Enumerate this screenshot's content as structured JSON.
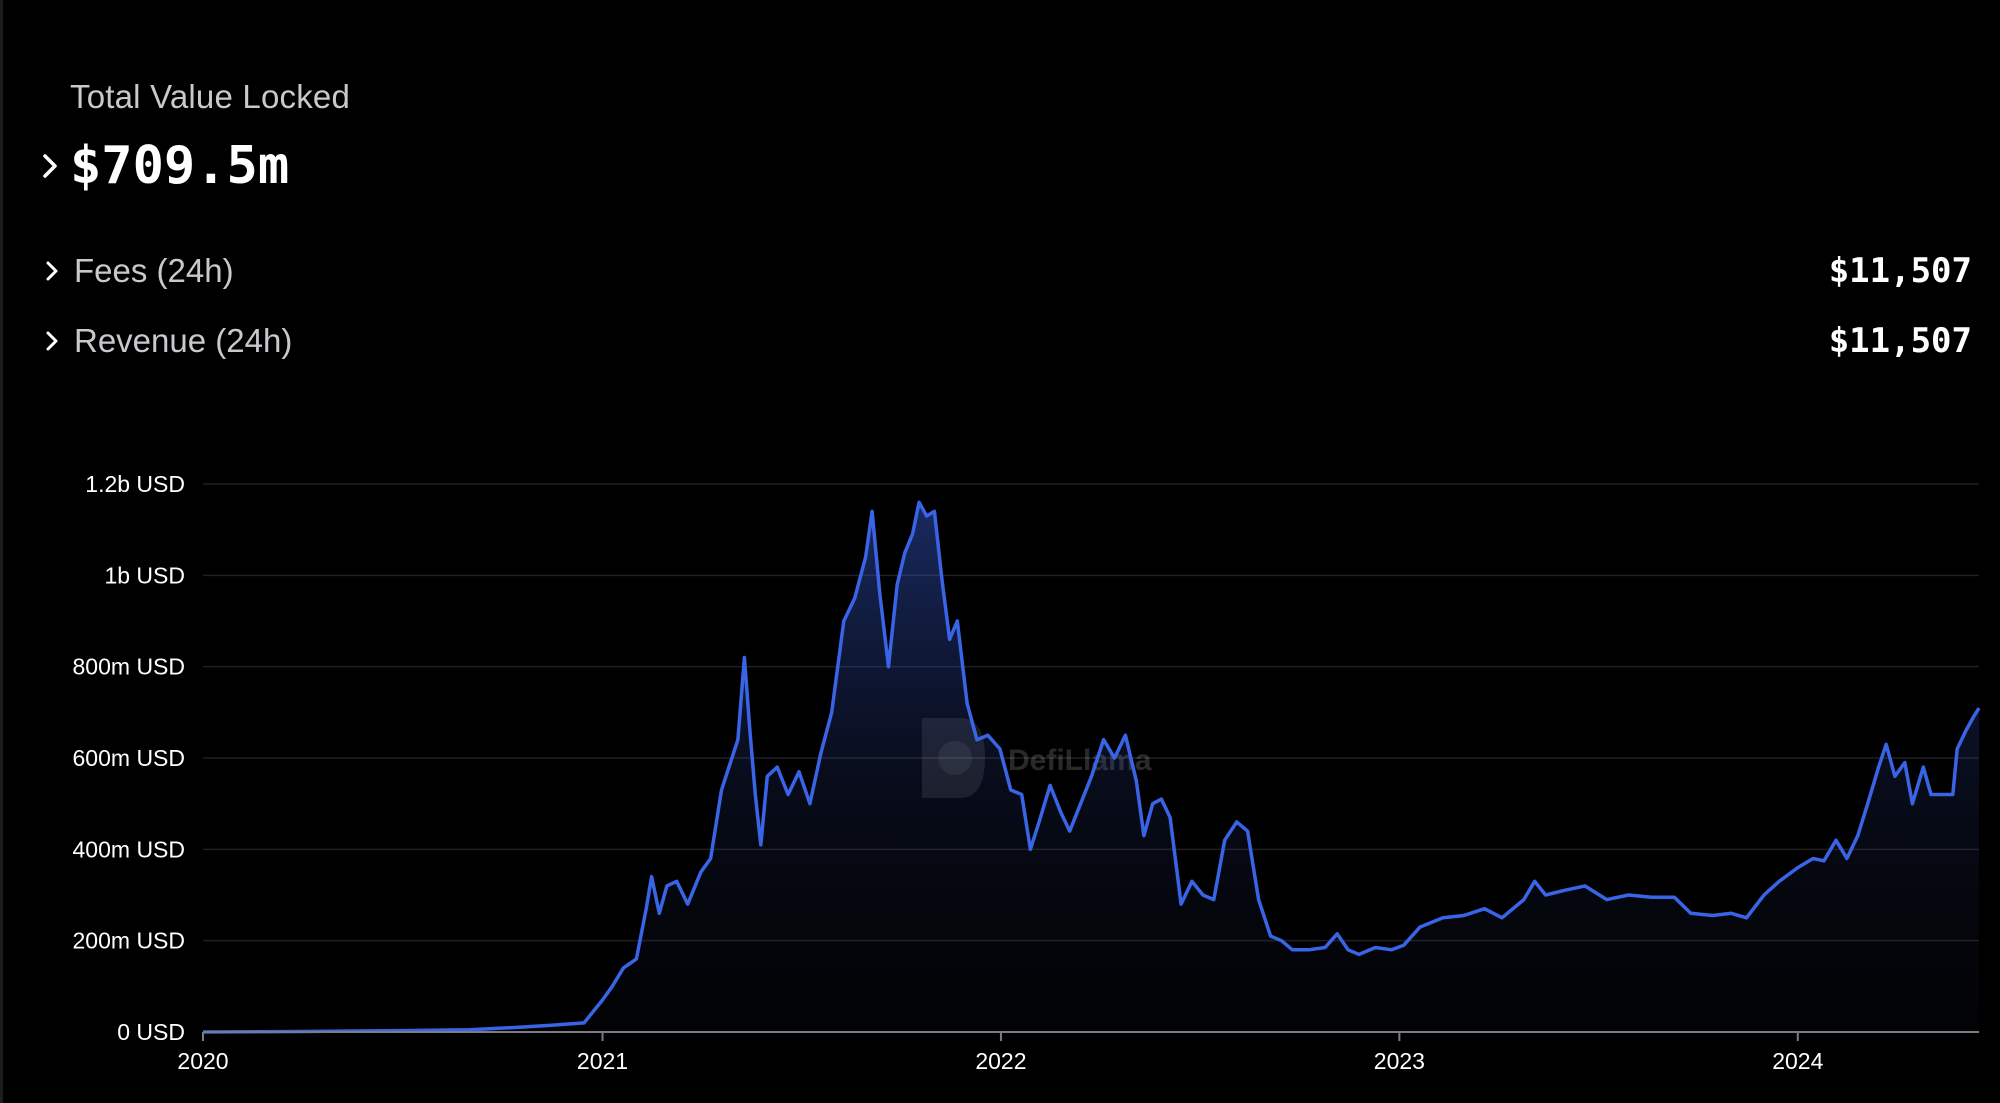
{
  "header": {
    "tvl_label": "Total Value Locked",
    "tvl_value": "$709.5m"
  },
  "metrics": [
    {
      "label": "Fees (24h)",
      "value": "$11,507"
    },
    {
      "label": "Revenue (24h)",
      "value": "$11,507"
    }
  ],
  "watermark": "DefiLlama",
  "colors": {
    "background": "#000000",
    "line": "#3a64e6",
    "grid": "#1f2024",
    "text_muted": "#c8c9cd"
  },
  "chart_data": {
    "type": "area",
    "title": "",
    "xlabel": "",
    "ylabel": "",
    "ylim": [
      0,
      1200000000
    ],
    "yticks": [
      0,
      200000000,
      400000000,
      600000000,
      800000000,
      1000000000,
      1200000000
    ],
    "ytick_labels": [
      "0 USD",
      "200m USD",
      "400m USD",
      "600m USD",
      "800m USD",
      "1b USD",
      "1.2b USD"
    ],
    "xlim": [
      "2020-01-01",
      "2024-06-15"
    ],
    "xticks": [
      "2020-01-01",
      "2021-01-01",
      "2022-01-01",
      "2023-01-01",
      "2024-01-01"
    ],
    "xtick_labels": [
      "2020",
      "2021",
      "2022",
      "2023",
      "2024"
    ],
    "grid": true,
    "series": [
      {
        "values_unit": "USD",
        "points": [
          [
            "2020-01-01",
            0
          ],
          [
            "2020-04-01",
            1000000
          ],
          [
            "2020-07-01",
            3000000
          ],
          [
            "2020-09-01",
            5000000
          ],
          [
            "2020-10-15",
            10000000
          ],
          [
            "2020-11-15",
            15000000
          ],
          [
            "2020-12-15",
            20000000
          ],
          [
            "2021-01-01",
            70000000
          ],
          [
            "2021-01-10",
            100000000
          ],
          [
            "2021-01-20",
            140000000
          ],
          [
            "2021-02-01",
            160000000
          ],
          [
            "2021-02-10",
            270000000
          ],
          [
            "2021-02-15",
            340000000
          ],
          [
            "2021-02-22",
            260000000
          ],
          [
            "2021-03-01",
            320000000
          ],
          [
            "2021-03-10",
            330000000
          ],
          [
            "2021-03-20",
            280000000
          ],
          [
            "2021-04-01",
            350000000
          ],
          [
            "2021-04-10",
            380000000
          ],
          [
            "2021-04-20",
            530000000
          ],
          [
            "2021-05-05",
            640000000
          ],
          [
            "2021-05-11",
            820000000
          ],
          [
            "2021-05-16",
            660000000
          ],
          [
            "2021-05-21",
            520000000
          ],
          [
            "2021-05-26",
            410000000
          ],
          [
            "2021-06-01",
            560000000
          ],
          [
            "2021-06-10",
            580000000
          ],
          [
            "2021-06-20",
            520000000
          ],
          [
            "2021-06-30",
            570000000
          ],
          [
            "2021-07-10",
            500000000
          ],
          [
            "2021-07-20",
            610000000
          ],
          [
            "2021-07-30",
            700000000
          ],
          [
            "2021-08-10",
            900000000
          ],
          [
            "2021-08-20",
            950000000
          ],
          [
            "2021-08-30",
            1040000000
          ],
          [
            "2021-09-05",
            1140000000
          ],
          [
            "2021-09-12",
            960000000
          ],
          [
            "2021-09-20",
            800000000
          ],
          [
            "2021-09-28",
            980000000
          ],
          [
            "2021-10-05",
            1050000000
          ],
          [
            "2021-10-12",
            1090000000
          ],
          [
            "2021-10-18",
            1160000000
          ],
          [
            "2021-10-25",
            1130000000
          ],
          [
            "2021-11-01",
            1140000000
          ],
          [
            "2021-11-08",
            990000000
          ],
          [
            "2021-11-15",
            860000000
          ],
          [
            "2021-11-22",
            900000000
          ],
          [
            "2021-12-01",
            720000000
          ],
          [
            "2021-12-10",
            640000000
          ],
          [
            "2021-12-20",
            650000000
          ],
          [
            "2021-12-31",
            620000000
          ],
          [
            "2022-01-10",
            530000000
          ],
          [
            "2022-01-20",
            520000000
          ],
          [
            "2022-01-28",
            400000000
          ],
          [
            "2022-02-05",
            460000000
          ],
          [
            "2022-02-15",
            540000000
          ],
          [
            "2022-02-25",
            480000000
          ],
          [
            "2022-03-05",
            440000000
          ],
          [
            "2022-03-15",
            500000000
          ],
          [
            "2022-03-25",
            560000000
          ],
          [
            "2022-04-05",
            640000000
          ],
          [
            "2022-04-15",
            600000000
          ],
          [
            "2022-04-25",
            650000000
          ],
          [
            "2022-05-05",
            550000000
          ],
          [
            "2022-05-12",
            430000000
          ],
          [
            "2022-05-20",
            500000000
          ],
          [
            "2022-05-28",
            510000000
          ],
          [
            "2022-06-05",
            470000000
          ],
          [
            "2022-06-15",
            280000000
          ],
          [
            "2022-06-25",
            330000000
          ],
          [
            "2022-07-05",
            300000000
          ],
          [
            "2022-07-15",
            290000000
          ],
          [
            "2022-07-25",
            420000000
          ],
          [
            "2022-08-05",
            460000000
          ],
          [
            "2022-08-15",
            440000000
          ],
          [
            "2022-08-25",
            290000000
          ],
          [
            "2022-09-05",
            210000000
          ],
          [
            "2022-09-15",
            200000000
          ],
          [
            "2022-09-25",
            180000000
          ],
          [
            "2022-10-10",
            180000000
          ],
          [
            "2022-10-25",
            185000000
          ],
          [
            "2022-11-05",
            215000000
          ],
          [
            "2022-11-15",
            180000000
          ],
          [
            "2022-11-25",
            170000000
          ],
          [
            "2022-12-10",
            185000000
          ],
          [
            "2022-12-25",
            180000000
          ],
          [
            "2023-01-05",
            190000000
          ],
          [
            "2023-01-20",
            230000000
          ],
          [
            "2023-02-10",
            250000000
          ],
          [
            "2023-03-01",
            255000000
          ],
          [
            "2023-03-20",
            270000000
          ],
          [
            "2023-04-05",
            250000000
          ],
          [
            "2023-04-25",
            290000000
          ],
          [
            "2023-05-05",
            330000000
          ],
          [
            "2023-05-15",
            300000000
          ],
          [
            "2023-06-01",
            310000000
          ],
          [
            "2023-06-20",
            320000000
          ],
          [
            "2023-07-10",
            290000000
          ],
          [
            "2023-07-30",
            300000000
          ],
          [
            "2023-08-20",
            295000000
          ],
          [
            "2023-09-10",
            295000000
          ],
          [
            "2023-09-25",
            260000000
          ],
          [
            "2023-10-15",
            255000000
          ],
          [
            "2023-11-01",
            260000000
          ],
          [
            "2023-11-15",
            250000000
          ],
          [
            "2023-12-01",
            300000000
          ],
          [
            "2023-12-15",
            330000000
          ],
          [
            "2024-01-01",
            360000000
          ],
          [
            "2024-01-15",
            380000000
          ],
          [
            "2024-01-25",
            375000000
          ],
          [
            "2024-02-05",
            420000000
          ],
          [
            "2024-02-15",
            380000000
          ],
          [
            "2024-02-25",
            430000000
          ],
          [
            "2024-03-05",
            500000000
          ],
          [
            "2024-03-15",
            580000000
          ],
          [
            "2024-03-22",
            630000000
          ],
          [
            "2024-03-30",
            560000000
          ],
          [
            "2024-04-08",
            590000000
          ],
          [
            "2024-04-15",
            500000000
          ],
          [
            "2024-04-25",
            580000000
          ],
          [
            "2024-05-02",
            520000000
          ],
          [
            "2024-05-12",
            520000000
          ],
          [
            "2024-05-22",
            520000000
          ],
          [
            "2024-05-26",
            620000000
          ],
          [
            "2024-06-03",
            660000000
          ],
          [
            "2024-06-10",
            690000000
          ],
          [
            "2024-06-15",
            709500000
          ]
        ]
      }
    ]
  }
}
